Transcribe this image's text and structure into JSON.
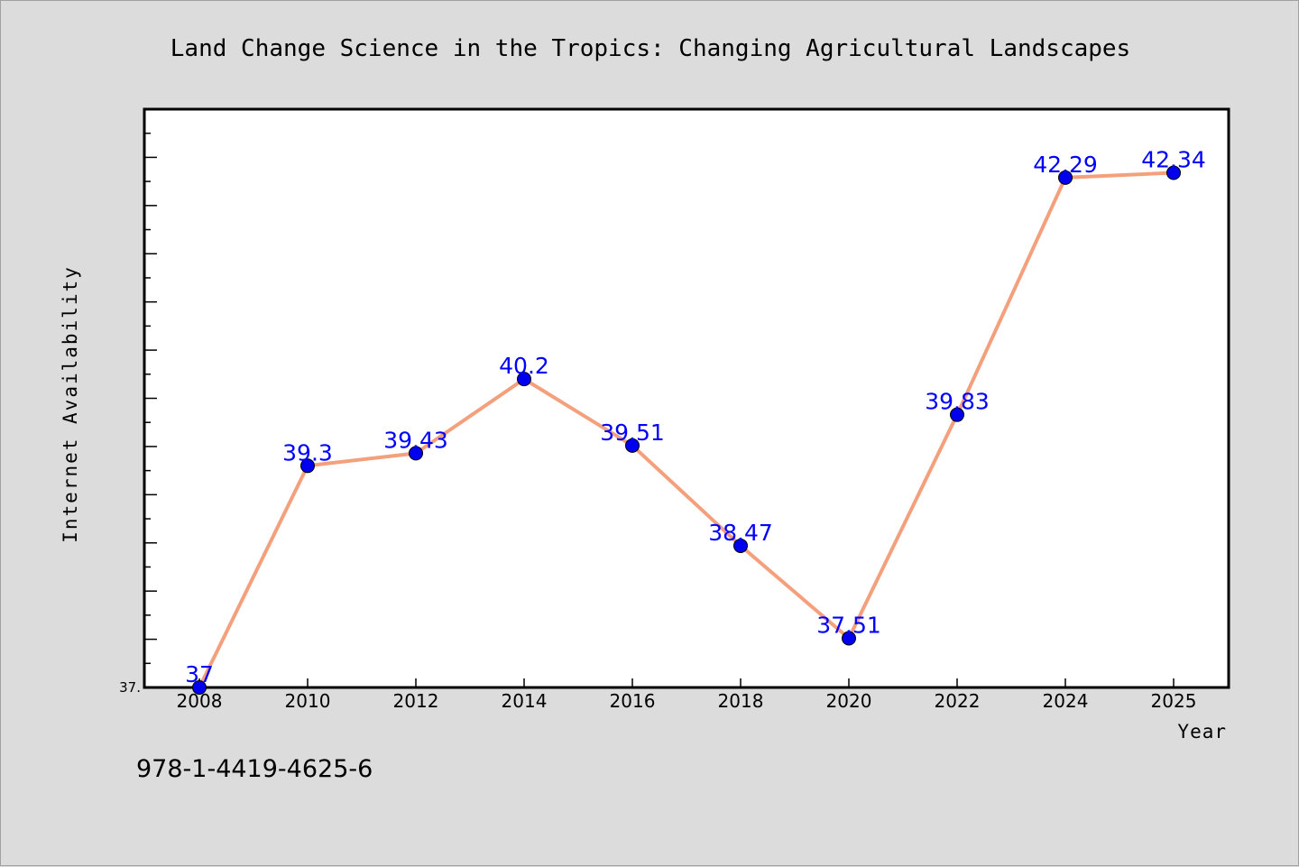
{
  "chart_data": {
    "type": "line",
    "title": "Land Change Science in the Tropics: Changing Agricultural Landscapes",
    "xlabel": "Year",
    "ylabel": "Internet Availability",
    "x": [
      "2008",
      "2010",
      "2012",
      "2014",
      "2016",
      "2018",
      "2020",
      "2022",
      "2024",
      "2025"
    ],
    "series": [
      {
        "values": [
          37,
          39.3,
          39.43,
          40.2,
          39.51,
          38.47,
          37.51,
          39.83,
          42.29,
          42.34
        ],
        "data_labels": [
          "37",
          "39.3",
          "39.43",
          "40.2",
          "39.51",
          "38.47",
          "37.51",
          "39.83",
          "42.29",
          "42.34"
        ]
      }
    ],
    "y_tick_labels": [
      "37."
    ],
    "ylim": [
      37,
      43
    ],
    "grid": false,
    "legend": "none",
    "colors": {
      "line": "#f4a07c",
      "marker": "#0000ee",
      "data_label": "#0000ff",
      "plot_background": "#ffffff",
      "page_background": "#dcdcdc"
    }
  },
  "footer": {
    "isbn": "978-1-4419-4625-6"
  }
}
